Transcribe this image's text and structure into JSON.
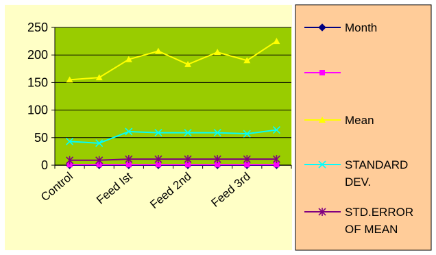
{
  "chart_data": {
    "type": "line",
    "categories": [
      "Control",
      "",
      "Feed   Ist",
      "",
      "Feed 2nd",
      "",
      "Feed 3rd",
      ""
    ],
    "ylim": [
      0,
      250
    ],
    "yticks": [
      0,
      50,
      100,
      150,
      200,
      250
    ],
    "grid": true,
    "legend_position": "right",
    "series": [
      {
        "name": "Month",
        "color": "#000080",
        "marker": "diamond",
        "values": [
          0,
          0,
          0,
          0,
          0,
          0,
          0,
          0
        ]
      },
      {
        "name": "",
        "color": "#ff00ff",
        "marker": "square",
        "values": [
          1,
          1,
          1,
          1,
          1,
          1,
          1,
          1
        ]
      },
      {
        "name": "Mean",
        "color": "#ffff00",
        "marker": "triangle",
        "values": [
          155,
          159,
          192,
          207,
          183,
          205,
          190,
          225
        ]
      },
      {
        "name": "STANDARD DEV.",
        "color": "#00ffff",
        "marker": "x",
        "values": [
          43,
          40,
          61,
          59,
          59,
          59,
          57,
          64
        ]
      },
      {
        "name": "STD.ERROR OF MEAN",
        "color": "#800080",
        "marker": "star",
        "values": [
          9,
          9,
          11,
          11,
          11,
          11,
          11,
          11
        ]
      }
    ]
  },
  "colors": {
    "page_background": "#ffffc6",
    "plot_background": "#99cc00",
    "legend_background": "#ffcc99"
  }
}
